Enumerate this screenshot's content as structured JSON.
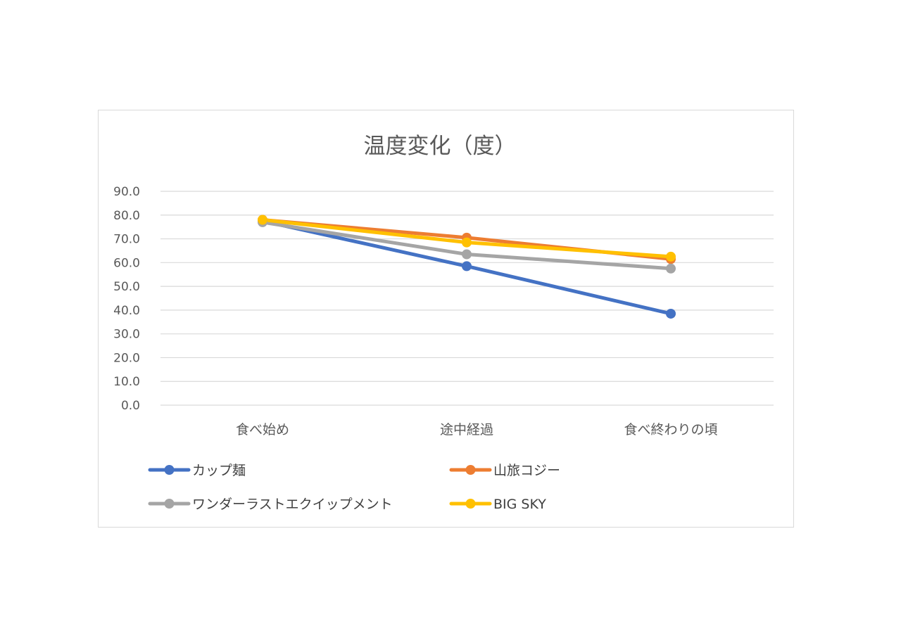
{
  "chart_data": {
    "type": "line",
    "title": "温度変化（度）",
    "categories": [
      "食べ始め",
      "途中経過",
      "食べ終わりの頃"
    ],
    "ylim": [
      0,
      90
    ],
    "yticks": [
      "90.0",
      "80.0",
      "70.0",
      "60.0",
      "50.0",
      "40.0",
      "30.0",
      "20.0",
      "10.0",
      "0.0"
    ],
    "ytick_values": [
      90,
      80,
      70,
      60,
      50,
      40,
      30,
      20,
      10,
      0
    ],
    "grid": true,
    "legend_position": "bottom",
    "series": [
      {
        "name": "カップ麺",
        "color": "#4472C4",
        "values": [
          77.5,
          58.5,
          38.5
        ]
      },
      {
        "name": "山旅コジー",
        "color": "#ED7D31",
        "values": [
          78.0,
          70.5,
          61.5
        ]
      },
      {
        "name": "ワンダーラストエクイップメント",
        "color": "#A5A5A5",
        "values": [
          77.0,
          63.5,
          57.5
        ]
      },
      {
        "name": "BIG SKY",
        "color": "#FFC000",
        "values": [
          78.0,
          68.5,
          62.5
        ]
      }
    ]
  }
}
